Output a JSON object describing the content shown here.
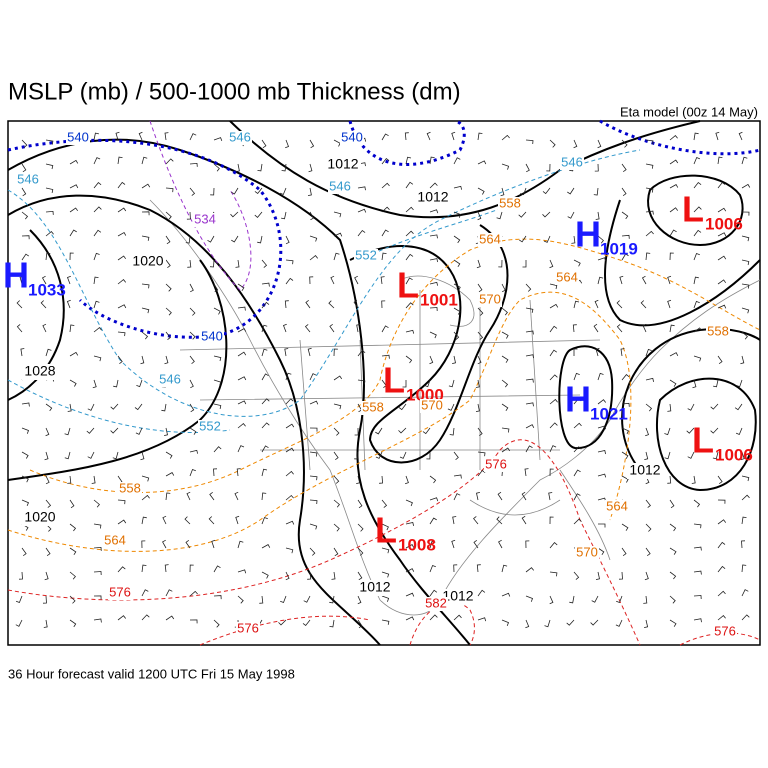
{
  "header": {
    "title": "MSLP (mb) / 500-1000 mb Thickness (dm)",
    "model": "Eta model (00z 14 May)"
  },
  "footer": "36 Hour forecast valid 1200 UTC Fri 15 May 1998",
  "centers": [
    {
      "type": "H",
      "pressure": "1033"
    },
    {
      "type": "L",
      "pressure": "1001"
    },
    {
      "type": "H",
      "pressure": "1019"
    },
    {
      "type": "L",
      "pressure": "1006"
    },
    {
      "type": "L",
      "pressure": "1000"
    },
    {
      "type": "H",
      "pressure": "1021"
    },
    {
      "type": "L",
      "pressure": "1006"
    },
    {
      "type": "L",
      "pressure": "1008"
    }
  ],
  "isobar_labels": [
    "1012",
    "1012",
    "1020",
    "1028",
    "1012",
    "1020",
    "1012",
    "1012"
  ],
  "thickness_labels": [
    "540",
    "546",
    "546",
    "540",
    "546",
    "546",
    "534",
    "552",
    "558",
    "564",
    "564",
    "570",
    "558",
    "540",
    "546",
    "552",
    "558",
    "570",
    "576",
    "558",
    "564",
    "564",
    "570",
    "576",
    "576",
    "582",
    "576"
  ]
}
